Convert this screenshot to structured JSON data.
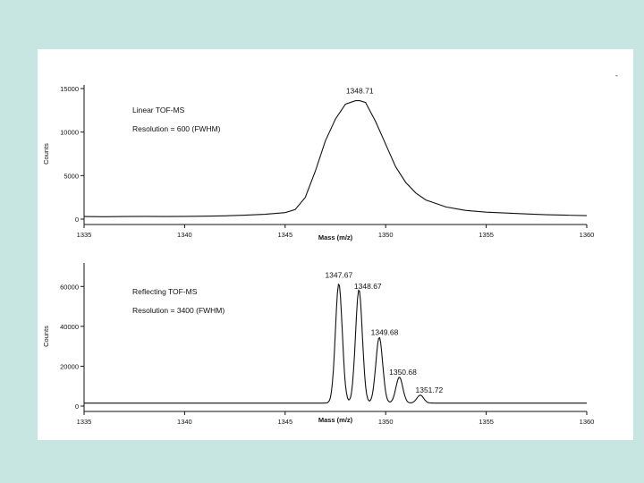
{
  "page": {
    "corner_mark": "-"
  },
  "chart_data": [
    {
      "type": "line",
      "xlabel": "Mass (m/z)",
      "ylabel": "Counts",
      "xlim": [
        1335,
        1360
      ],
      "ylim": [
        0,
        15000
      ],
      "x_ticks": [
        "1335",
        "1340",
        "1345",
        "1350",
        "1355",
        "1360"
      ],
      "y_ticks": [
        "0",
        "5000",
        "10000",
        "15000"
      ],
      "annotations": [
        "Linear TOF-MS",
        "Resolution = 600 (FWHM)"
      ],
      "peak_labels": [
        {
          "x": 1348.71,
          "y": 13600,
          "text": "1348.71"
        }
      ],
      "series": [
        {
          "x": [
            1335,
            1336,
            1337,
            1338,
            1339,
            1340,
            1341,
            1342,
            1343,
            1344,
            1345,
            1345.5,
            1346,
            1346.5,
            1347,
            1347.5,
            1348,
            1348.5,
            1348.71,
            1349,
            1349.5,
            1350,
            1350.5,
            1351,
            1351.5,
            1352,
            1353,
            1354,
            1355,
            1356,
            1357,
            1358,
            1359,
            1360
          ],
          "y": [
            300,
            280,
            300,
            320,
            300,
            320,
            340,
            380,
            450,
            550,
            750,
            1100,
            2500,
            5500,
            9000,
            11500,
            13200,
            13600,
            13600,
            13400,
            11200,
            8600,
            6000,
            4200,
            3000,
            2200,
            1400,
            1000,
            800,
            700,
            600,
            500,
            450,
            400
          ]
        }
      ]
    },
    {
      "type": "line",
      "xlabel": "Mass (m/z)",
      "ylabel": "Counts",
      "xlim": [
        1335,
        1360
      ],
      "ylim": [
        0,
        70000
      ],
      "x_ticks": [
        "1335",
        "1340",
        "1345",
        "1350",
        "1355",
        "1360"
      ],
      "y_ticks": [
        "0",
        "20000",
        "40000",
        "60000"
      ],
      "annotations": [
        "Reflecting TOF-MS",
        "Resolution = 3400 (FWHM)"
      ],
      "peak_labels": [
        {
          "x": 1347.67,
          "y": 60000,
          "text": "1347.67"
        },
        {
          "x": 1348.67,
          "y": 57000,
          "text": "1348.67"
        },
        {
          "x": 1349.68,
          "y": 33000,
          "text": "1349.68"
        },
        {
          "x": 1350.68,
          "y": 13000,
          "text": "1350.68"
        },
        {
          "x": 1351.72,
          "y": 4000,
          "text": "1351.72"
        }
      ],
      "baseline": 1500,
      "peaks": [
        {
          "center": 1347.67,
          "height": 60000
        },
        {
          "center": 1348.67,
          "height": 57000
        },
        {
          "center": 1349.68,
          "height": 33000
        },
        {
          "center": 1350.68,
          "height": 13000
        },
        {
          "center": 1351.72,
          "height": 4000
        }
      ],
      "peak_fwhm": 0.4
    }
  ]
}
